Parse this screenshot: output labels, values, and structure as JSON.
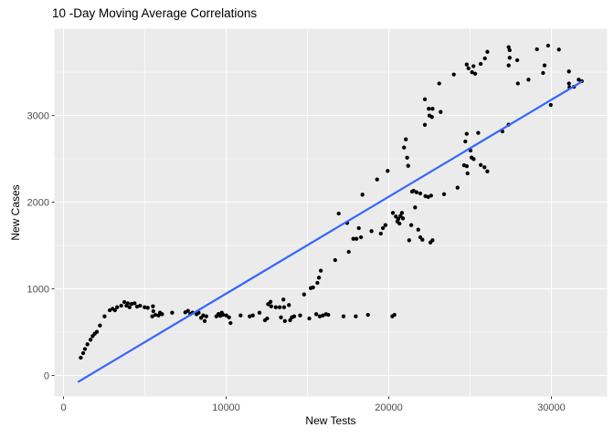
{
  "chart_data": {
    "type": "scatter",
    "title": "10 -Day Moving Average Correlations",
    "xlabel": "New Tests",
    "ylabel": "New Cases",
    "xlim": [
      -562,
      33427
    ],
    "ylim": [
      -242,
      4000
    ],
    "grid": "major+minor",
    "legend": "none",
    "x_ticks": {
      "values": [
        0,
        10000,
        20000,
        30000
      ],
      "labels": [
        "0",
        "10000",
        "20000",
        "30000"
      ]
    },
    "x_minor": [
      5000,
      15000,
      25000
    ],
    "y_ticks": {
      "values": [
        0,
        1000,
        2000,
        3000
      ],
      "labels": [
        "0",
        "1000",
        "2000",
        "3000"
      ]
    },
    "y_minor": [
      500,
      1500,
      2500,
      3500
    ],
    "style": {
      "panel_bg": "#EBEBEB",
      "grid_color": "#FFFFFF",
      "point_color": "#000000",
      "trend_color": "#3366FF",
      "axis_text_color": "#4D4D4D",
      "tick_color": "#333333",
      "title_color": "#000000"
    },
    "trend_line": {
      "type": "linear-fit",
      "x1": 930,
      "y1": -70,
      "x2": 31870,
      "y2": 3390
    },
    "points": [
      [
        1060,
        205
      ],
      [
        1210,
        258
      ],
      [
        1320,
        305
      ],
      [
        1470,
        360
      ],
      [
        1660,
        413
      ],
      [
        1790,
        455
      ],
      [
        1920,
        482
      ],
      [
        2050,
        503
      ],
      [
        2240,
        577
      ],
      [
        2520,
        682
      ],
      [
        2840,
        753
      ],
      [
        3020,
        770
      ],
      [
        3160,
        753
      ],
      [
        3300,
        787
      ],
      [
        3550,
        805
      ],
      [
        3740,
        847
      ],
      [
        3870,
        805
      ],
      [
        3960,
        833
      ],
      [
        4060,
        787
      ],
      [
        4190,
        826
      ],
      [
        4370,
        833
      ],
      [
        4520,
        795
      ],
      [
        4710,
        805
      ],
      [
        4990,
        787
      ],
      [
        5180,
        781
      ],
      [
        5460,
        682
      ],
      [
        5500,
        798
      ],
      [
        5520,
        742
      ],
      [
        5650,
        700
      ],
      [
        5840,
        693
      ],
      [
        5930,
        724
      ],
      [
        6060,
        707
      ],
      [
        6680,
        724
      ],
      [
        7490,
        728
      ],
      [
        7650,
        745
      ],
      [
        7800,
        710
      ],
      [
        7930,
        724
      ],
      [
        8180,
        707
      ],
      [
        8310,
        724
      ],
      [
        8460,
        665
      ],
      [
        8590,
        693
      ],
      [
        8680,
        629
      ],
      [
        8780,
        682
      ],
      [
        9400,
        682
      ],
      [
        9530,
        710
      ],
      [
        9640,
        689
      ],
      [
        9730,
        724
      ],
      [
        9820,
        700
      ],
      [
        10010,
        693
      ],
      [
        10180,
        671
      ],
      [
        10270,
        605
      ],
      [
        10890,
        693
      ],
      [
        11450,
        682
      ],
      [
        11640,
        693
      ],
      [
        12050,
        724
      ],
      [
        12390,
        637
      ],
      [
        12520,
        658
      ],
      [
        12580,
        823
      ],
      [
        12730,
        850
      ],
      [
        12770,
        798
      ],
      [
        13050,
        787
      ],
      [
        13290,
        787
      ],
      [
        13370,
        671
      ],
      [
        13520,
        876
      ],
      [
        13560,
        787
      ],
      [
        13610,
        629
      ],
      [
        13860,
        813
      ],
      [
        13930,
        637
      ],
      [
        14040,
        671
      ],
      [
        14180,
        682
      ],
      [
        14550,
        693
      ],
      [
        14790,
        935
      ],
      [
        15110,
        658
      ],
      [
        15200,
        1009
      ],
      [
        15350,
        1016
      ],
      [
        15540,
        707
      ],
      [
        15610,
        1068
      ],
      [
        15710,
        1128
      ],
      [
        15760,
        682
      ],
      [
        15950,
        693
      ],
      [
        16140,
        707
      ],
      [
        16280,
        700
      ],
      [
        17220,
        682
      ],
      [
        17970,
        682
      ],
      [
        18720,
        700
      ],
      [
        20220,
        682
      ],
      [
        20350,
        700
      ],
      [
        15820,
        1210
      ],
      [
        16700,
        1332
      ],
      [
        16920,
        1868
      ],
      [
        17440,
        1760
      ],
      [
        17540,
        1426
      ],
      [
        17820,
        1577
      ],
      [
        18010,
        1577
      ],
      [
        18160,
        1700
      ],
      [
        18290,
        1595
      ],
      [
        18380,
        2086
      ],
      [
        18940,
        1665
      ],
      [
        19280,
        2261
      ],
      [
        19510,
        1637
      ],
      [
        19640,
        1700
      ],
      [
        19790,
        1735
      ],
      [
        19930,
        2360
      ],
      [
        20250,
        1876
      ],
      [
        20440,
        1834
      ],
      [
        20530,
        1777
      ],
      [
        20590,
        1805
      ],
      [
        20660,
        1753
      ],
      [
        20720,
        1840
      ],
      [
        20810,
        1876
      ],
      [
        20870,
        1813
      ],
      [
        20940,
        2629
      ],
      [
        21050,
        2724
      ],
      [
        21130,
        2513
      ],
      [
        21190,
        2419
      ],
      [
        21250,
        1560
      ],
      [
        21380,
        1735
      ],
      [
        21430,
        2121
      ],
      [
        21530,
        2129
      ],
      [
        21620,
        1939
      ],
      [
        21710,
        2114
      ],
      [
        21810,
        1682
      ],
      [
        21940,
        1595
      ],
      [
        22070,
        1566
      ],
      [
        22560,
        1535
      ],
      [
        22690,
        1560
      ],
      [
        21940,
        2100
      ],
      [
        22250,
        2070
      ],
      [
        22420,
        2060
      ],
      [
        22600,
        2075
      ],
      [
        23400,
        2092
      ],
      [
        24230,
        2166
      ],
      [
        24630,
        2425
      ],
      [
        24800,
        2415
      ],
      [
        24840,
        2332
      ],
      [
        25660,
        2428
      ],
      [
        25890,
        2402
      ],
      [
        26060,
        2355
      ],
      [
        25030,
        2595
      ],
      [
        25090,
        2514
      ],
      [
        25220,
        2497
      ],
      [
        24710,
        2700
      ],
      [
        24790,
        2788
      ],
      [
        25500,
        2799
      ],
      [
        26990,
        2816
      ],
      [
        27370,
        2894
      ],
      [
        22220,
        2892
      ],
      [
        22220,
        3186
      ],
      [
        22460,
        3077
      ],
      [
        22500,
        2998
      ],
      [
        22650,
        2982
      ],
      [
        22690,
        3077
      ],
      [
        23100,
        3368
      ],
      [
        23190,
        3040
      ],
      [
        24000,
        3473
      ],
      [
        24790,
        3587
      ],
      [
        24900,
        3543
      ],
      [
        25120,
        3498
      ],
      [
        25210,
        3568
      ],
      [
        25310,
        3481
      ],
      [
        25650,
        3595
      ],
      [
        25910,
        3658
      ],
      [
        26060,
        3734
      ],
      [
        27370,
        3577
      ],
      [
        27370,
        3787
      ],
      [
        27430,
        3665
      ],
      [
        27430,
        3753
      ],
      [
        27900,
        3637
      ],
      [
        27940,
        3368
      ],
      [
        28590,
        3413
      ],
      [
        29110,
        3763
      ],
      [
        29490,
        3490
      ],
      [
        29580,
        3577
      ],
      [
        29800,
        3805
      ],
      [
        29960,
        3121
      ],
      [
        30460,
        3760
      ],
      [
        31080,
        3368
      ],
      [
        31080,
        3507
      ],
      [
        31110,
        3324
      ],
      [
        31390,
        3331
      ],
      [
        31680,
        3413
      ],
      [
        31870,
        3395
      ]
    ]
  }
}
